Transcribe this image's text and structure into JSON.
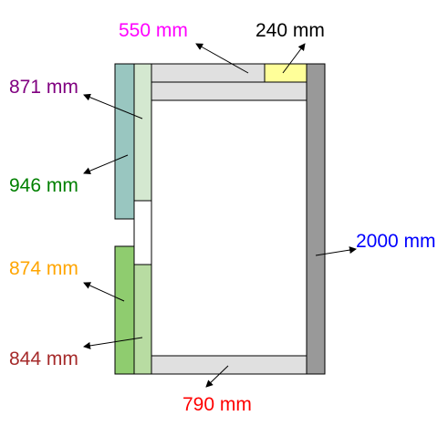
{
  "labels": {
    "top_left": {
      "text": "550 mm",
      "color": "#ff00ff"
    },
    "top_right": {
      "text": "240 mm",
      "color": "#000000"
    },
    "upper_outer": {
      "text": "871 mm",
      "color": "#800080"
    },
    "upper_inner": {
      "text": "946 mm",
      "color": "#008000"
    },
    "lower_outer": {
      "text": "874 mm",
      "color": "#ffa500"
    },
    "lower_inner": {
      "text": "844 mm",
      "color": "#a52a2a"
    },
    "right_side": {
      "text": "2000 mm",
      "color": "#0000ff"
    },
    "bottom": {
      "text": "790 mm",
      "color": "#ff0000"
    }
  },
  "colors": {
    "panel_light_gray": "#e0e0e0",
    "panel_dark_gray": "#999999",
    "panel_yellow": "#ffff99",
    "upper_outer_teal": "#99c6c0",
    "upper_inner_green": "#d4e8d0",
    "lower_outer_green": "#8fcc6f",
    "lower_inner_green": "#b8dca2",
    "outline": "#000000"
  }
}
